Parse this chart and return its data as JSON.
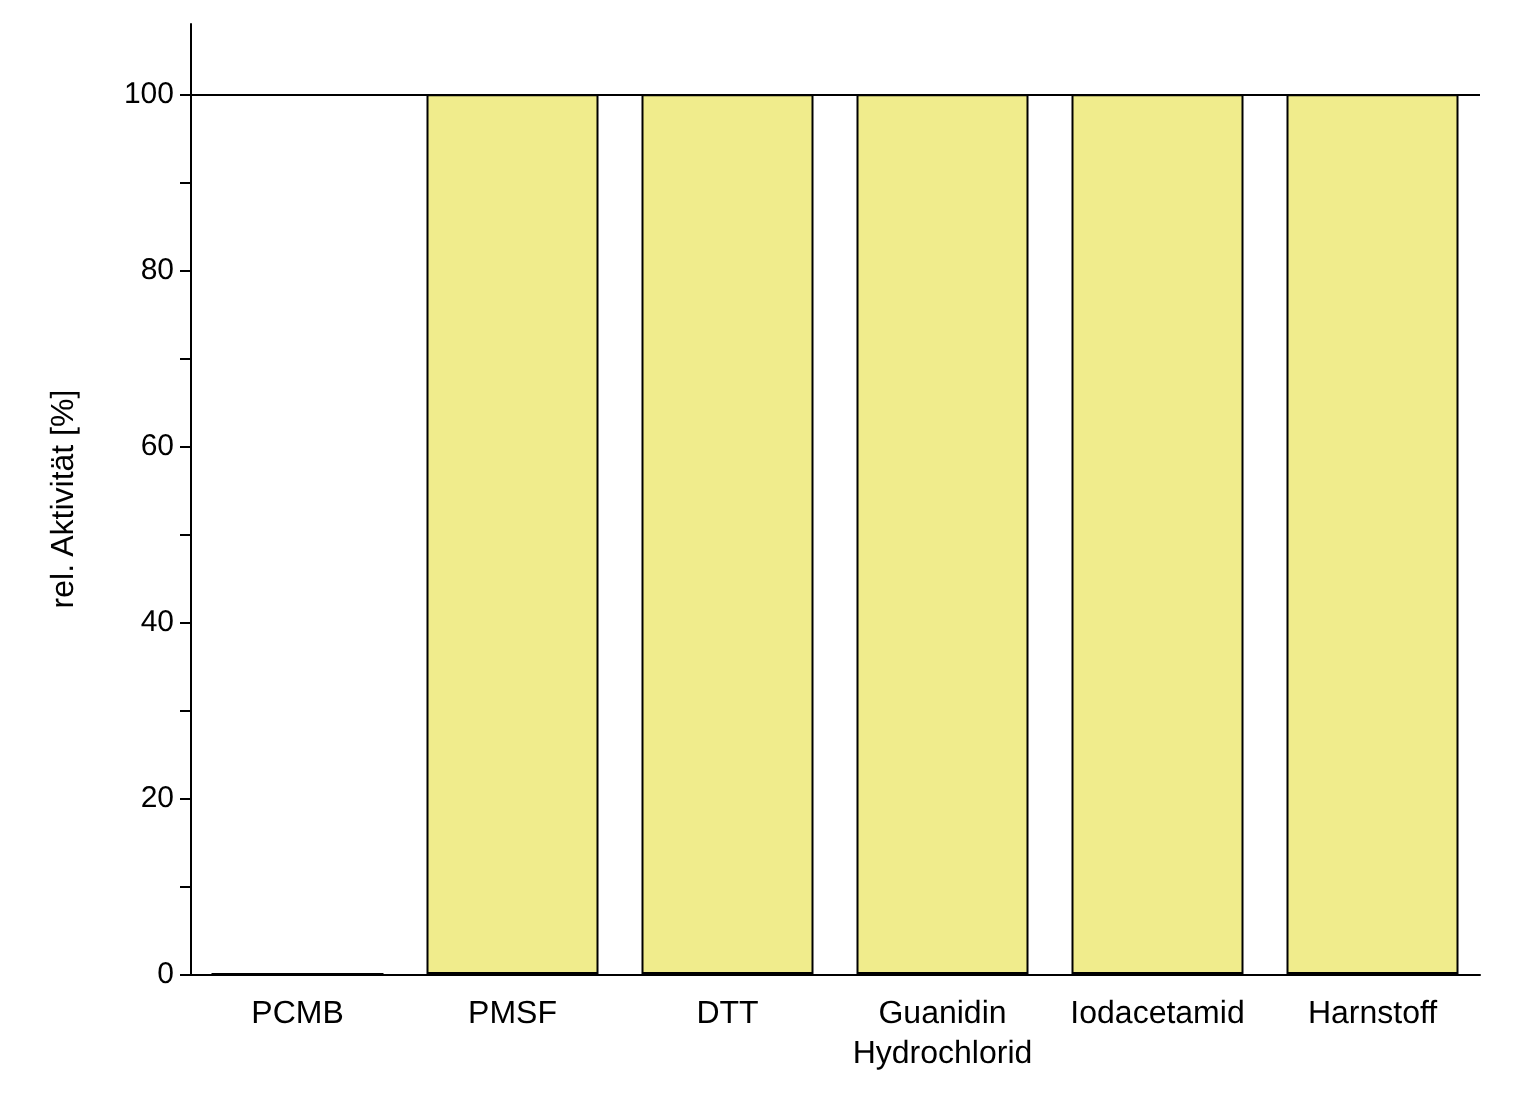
{
  "chart_data": {
    "type": "bar",
    "ylabel": "rel. Aktivität [%]",
    "categories": [
      "PCMB",
      "PMSF",
      "DTT",
      "Guanidin\nHydrochlorid",
      "Iodacetamid",
      "Harnstoff"
    ],
    "values": [
      0,
      100,
      100,
      100,
      100,
      100
    ],
    "color": "#f0ec8c",
    "ylim": [
      0,
      108
    ],
    "yticks": [
      0,
      {
        "value": 10,
        "label": null
      },
      20,
      {
        "value": 30,
        "label": null
      },
      40,
      {
        "value": 50,
        "label": null
      },
      60,
      {
        "value": 70,
        "label": null
      },
      80,
      {
        "value": 90,
        "label": null
      },
      100
    ],
    "ref_lines": [
      {
        "axis": "y",
        "value": 100,
        "label": null,
        "color": "#000000"
      }
    ],
    "grid": false
  }
}
